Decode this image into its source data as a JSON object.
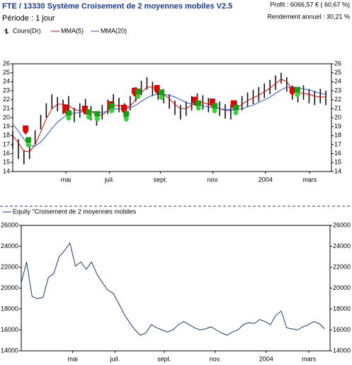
{
  "chart_data": [
    {
      "type": "stock",
      "title": "FTE / 13330  Système Croisement de 2 moyennes mobiles V2.5",
      "subtitle": "Période : 1 jour",
      "annotations": [
        "Profit : 6066,57 € ( 60,67 %)",
        "Rendement annuel : 30,21 %"
      ],
      "x": [
        0,
        1,
        2,
        3,
        4,
        5,
        6,
        7,
        8,
        9,
        10,
        11,
        12,
        13,
        14,
        15,
        16,
        17,
        18,
        19,
        20,
        21,
        22,
        23,
        24,
        25,
        26,
        27,
        28,
        29,
        30,
        31,
        32,
        33,
        34,
        35,
        36,
        37,
        38,
        39,
        40,
        41,
        42,
        43,
        44,
        45,
        46,
        47,
        48,
        49,
        50,
        51,
        52,
        53,
        54,
        55,
        56
      ],
      "series": [
        {
          "name": "Cours(Dr)",
          "color": "#000000",
          "high": [
            18.5,
            17.6,
            16.4,
            17.0,
            18.6,
            20.3,
            21.6,
            22.6,
            22.3,
            22.0,
            22.4,
            21.1,
            21.6,
            22.1,
            21.3,
            20.7,
            21.4,
            22.0,
            22.6,
            22.2,
            21.6,
            22.4,
            23.4,
            24.1,
            24.5,
            24.0,
            23.6,
            23.2,
            22.6,
            21.9,
            21.4,
            21.8,
            22.4,
            22.7,
            22.5,
            22.2,
            22.1,
            21.8,
            21.5,
            21.4,
            21.9,
            22.4,
            22.8,
            23.1,
            23.4,
            23.8,
            24.2,
            24.7,
            25.0,
            24.5,
            23.6,
            23.3,
            23.6,
            23.2,
            23.0,
            23.2,
            23.0
          ],
          "low": [
            16.5,
            15.4,
            14.8,
            15.4,
            17.0,
            18.7,
            20.0,
            21.0,
            20.7,
            20.4,
            20.8,
            19.5,
            20.0,
            20.5,
            19.7,
            19.1,
            19.8,
            20.4,
            21.0,
            20.6,
            20.0,
            20.8,
            21.8,
            22.5,
            23.1,
            22.4,
            22.0,
            21.6,
            21.0,
            20.3,
            19.8,
            20.2,
            20.8,
            21.1,
            20.9,
            20.6,
            20.5,
            20.2,
            19.9,
            19.8,
            20.3,
            20.8,
            21.2,
            21.5,
            21.8,
            22.2,
            22.6,
            23.1,
            23.8,
            22.9,
            22.0,
            21.7,
            22.0,
            21.6,
            21.4,
            21.6,
            21.4
          ]
        },
        {
          "name": "MMA(5)",
          "color": "#e00000",
          "values": [
            18.0,
            17.2,
            16.3,
            16.2,
            17.0,
            18.4,
            19.9,
            21.0,
            21.5,
            21.5,
            21.4,
            20.9,
            20.8,
            20.9,
            20.7,
            20.3,
            20.3,
            20.8,
            21.3,
            21.4,
            21.1,
            21.3,
            22.0,
            22.8,
            23.4,
            23.4,
            23.0,
            22.6,
            22.1,
            21.5,
            21.0,
            21.0,
            21.4,
            21.7,
            21.7,
            21.5,
            21.2,
            21.0,
            20.8,
            20.8,
            21.0,
            21.5,
            21.9,
            22.2,
            22.5,
            22.9,
            23.3,
            23.8,
            24.3,
            24.0,
            23.2,
            22.8,
            22.7,
            22.6,
            22.4,
            22.3,
            22.3
          ]
        },
        {
          "name": "MMA(20)",
          "color": "#2a55cc",
          "values": [
            19.3,
            18.5,
            17.6,
            16.9,
            16.8,
            17.3,
            18.0,
            18.8,
            19.5,
            20.0,
            20.4,
            20.5,
            20.6,
            20.7,
            20.7,
            20.6,
            20.6,
            20.7,
            20.9,
            21.0,
            21.0,
            21.1,
            21.4,
            21.8,
            22.2,
            22.5,
            22.6,
            22.6,
            22.5,
            22.3,
            22.0,
            21.7,
            21.5,
            21.4,
            21.3,
            21.2,
            21.1,
            21.0,
            20.9,
            20.9,
            20.9,
            21.0,
            21.2,
            21.4,
            21.7,
            22.0,
            22.3,
            22.7,
            23.1,
            23.4,
            23.4,
            23.3,
            23.2,
            23.1,
            22.9,
            22.7,
            22.6
          ]
        }
      ],
      "sell_signals": {
        "color": "#e00000",
        "x": [
          2.3,
          9.4,
          12.9,
          17.4,
          19.9,
          21.8,
          25.8,
          32.6,
          35.7,
          39.5,
          50.0
        ],
        "values": [
          18.5,
          20.8,
          20.7,
          21.2,
          20.8,
          22.7,
          23.0,
          21.7,
          21.5,
          21.3,
          22.8
        ]
      },
      "buy_signals": {
        "color": "#12a012",
        "x": [
          2.8,
          10.0,
          13.6,
          15.1,
          17.7,
          20.3,
          22.4,
          26.6,
          33.2,
          36.1,
          39.9,
          50.9
        ],
        "values": [
          17.2,
          20.2,
          20.3,
          20.1,
          21.0,
          20.1,
          22.6,
          22.5,
          21.3,
          21.0,
          20.8,
          22.8
        ]
      },
      "xlim": [
        0,
        57
      ],
      "xticks": [
        {
          "value": 9.5,
          "label": "mai"
        },
        {
          "value": 17.3,
          "label": "juil."
        },
        {
          "value": 26.4,
          "label": "sept."
        },
        {
          "value": 35.8,
          "label": "nov."
        },
        {
          "value": 45.2,
          "label": "2004"
        },
        {
          "value": 53.1,
          "label": "mars"
        }
      ],
      "ylim": [
        14,
        26
      ],
      "yticks": [
        14,
        15,
        16,
        17,
        18,
        19,
        20,
        21,
        22,
        23,
        24,
        25,
        26
      ]
    },
    {
      "type": "line",
      "x": [
        0,
        1,
        2,
        3,
        4,
        5,
        6,
        7,
        8,
        9,
        10,
        11,
        12,
        13,
        14,
        15,
        16,
        17,
        18,
        19,
        20,
        21,
        22,
        23,
        24,
        25,
        26,
        27,
        28,
        29,
        30,
        31,
        32,
        33,
        34,
        35,
        36,
        37,
        38,
        39,
        40,
        41,
        42,
        43,
        44,
        45,
        46,
        47,
        48,
        49,
        50,
        51,
        52,
        53,
        54,
        55,
        56
      ],
      "series": [
        {
          "name": "Equity \"Croisement de 2 moyennes mobiles",
          "color": "#1a3a6a",
          "values": [
            20500,
            22500,
            19200,
            19000,
            19100,
            21000,
            21400,
            23000,
            23600,
            24300,
            22100,
            22500,
            21800,
            22500,
            21300,
            20500,
            19800,
            19500,
            18500,
            17500,
            16700,
            16000,
            15500,
            15700,
            16500,
            16200,
            16000,
            15800,
            16000,
            16500,
            16800,
            16500,
            16200,
            16000,
            16100,
            16300,
            16000,
            15700,
            15500,
            15800,
            16000,
            16500,
            16700,
            16600,
            17000,
            16800,
            16500,
            17400,
            17800,
            16200,
            16100,
            16000,
            16300,
            16500,
            16800,
            16600,
            16100
          ]
        }
      ],
      "xlim": [
        0,
        57
      ],
      "xticks": [
        {
          "value": 9.5,
          "label": "mai"
        },
        {
          "value": 17.3,
          "label": "juil."
        },
        {
          "value": 26.4,
          "label": "sept."
        },
        {
          "value": 35.8,
          "label": "nov."
        },
        {
          "value": 45.2,
          "label": "2004"
        },
        {
          "value": 53.1,
          "label": "mars"
        }
      ],
      "ylim": [
        14000,
        26000
      ],
      "yticks": [
        14000,
        16000,
        18000,
        20000,
        22000,
        24000,
        26000
      ]
    }
  ]
}
